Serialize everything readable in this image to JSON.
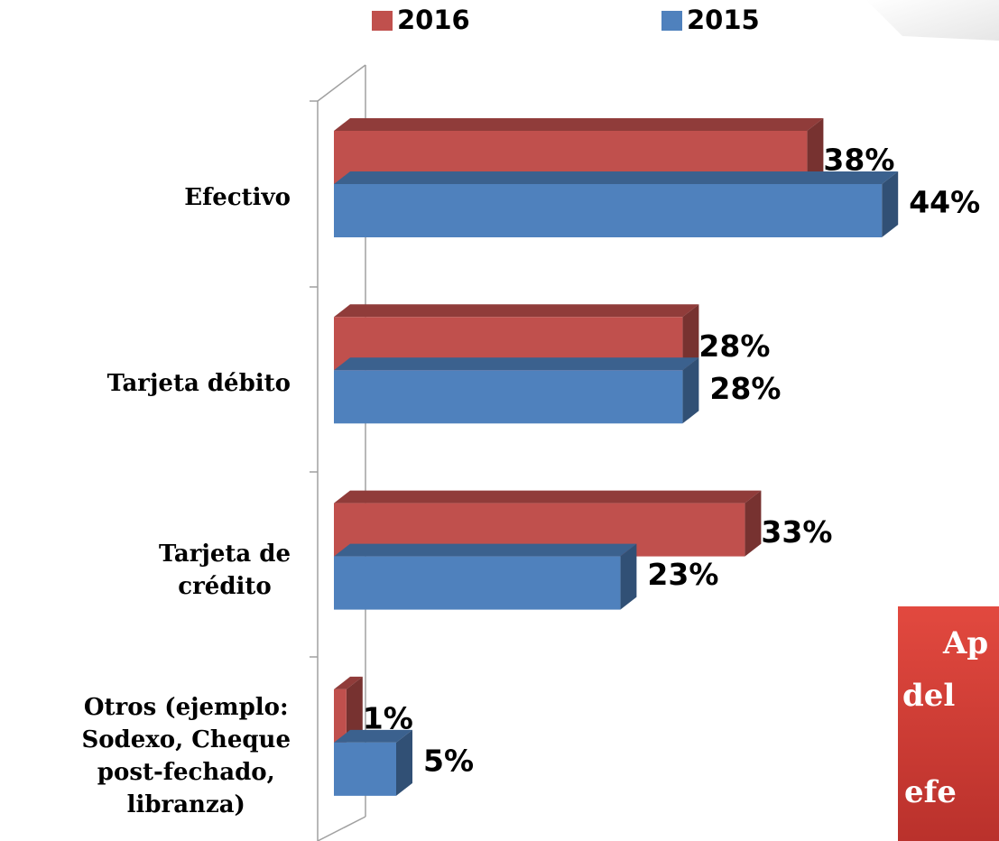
{
  "chart_data": {
    "type": "bar3d_horizontal",
    "categories": [
      "Efectivo",
      "Tarjeta débito",
      "Tarjeta de\ncrédito",
      "Otros (ejemplo:\nSodexo, Cheque\npost-fechado,\nlibranza)"
    ],
    "series": [
      {
        "name": "2016",
        "color": "#c0504d",
        "values": [
          38,
          28,
          33,
          1
        ],
        "value_labels": [
          "38%",
          "28%",
          "33%",
          "1%"
        ]
      },
      {
        "name": "2015",
        "color": "#4f81bd",
        "values": [
          44,
          28,
          23,
          5
        ],
        "value_labels": [
          "44%",
          "28%",
          "23%",
          "5%"
        ]
      }
    ],
    "xlim": [
      0,
      50
    ],
    "annotation": [
      "Ap",
      "del",
      "efe"
    ]
  }
}
